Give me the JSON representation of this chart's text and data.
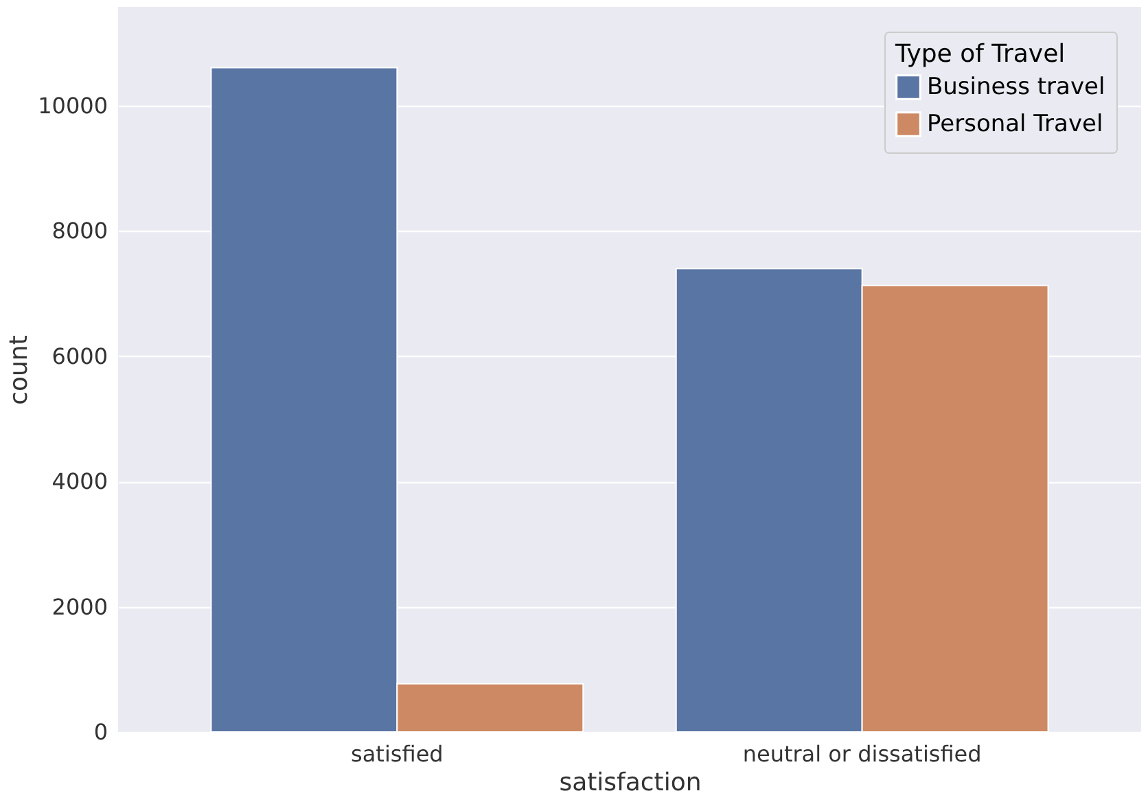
{
  "chart_data": {
    "type": "bar",
    "xlabel": "satisfaction",
    "ylabel": "count",
    "legend_title": "Type of Travel",
    "categories": [
      "satisfied",
      "neutral or dissatisfied"
    ],
    "series": [
      {
        "name": "Business travel",
        "color": "#5975a4",
        "values": [
          10610,
          7400
        ]
      },
      {
        "name": "Personal Travel",
        "color": "#cc8963",
        "values": [
          770,
          7130
        ]
      }
    ],
    "ylim": [
      0,
      11580
    ],
    "yticks": [
      0,
      2000,
      4000,
      6000,
      8000,
      10000
    ],
    "grid": "y",
    "legend": "top right"
  }
}
